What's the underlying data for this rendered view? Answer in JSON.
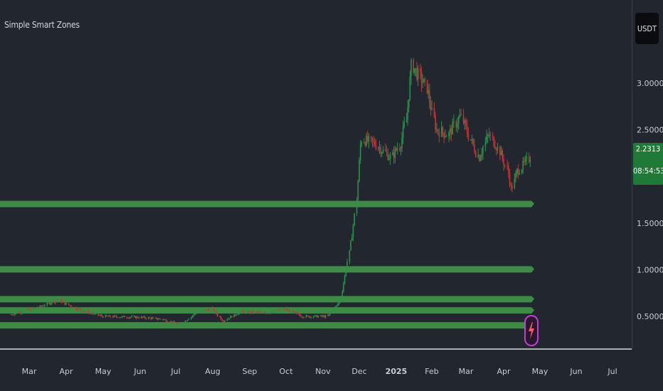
{
  "indicator_title": "Simple Smart Zones",
  "currency": "USDT",
  "last_price": "2.2313",
  "countdown": "08:54:53",
  "colors": {
    "background": "#22262f",
    "up": "#2f8f4a",
    "down": "#b83a3a",
    "zone": "#3f8a46",
    "price_label": "#1f7a38"
  },
  "chart_data": {
    "type": "line",
    "title": "",
    "series_type": "candlestick",
    "x_ticks": [
      "Mar",
      "Apr",
      "May",
      "Jun",
      "Jul",
      "Aug",
      "Sep",
      "Oct",
      "Nov",
      "Dec",
      "2025",
      "Feb",
      "Mar",
      "Apr",
      "May",
      "Jun",
      "Jul"
    ],
    "y_ticks": [
      "3.0000",
      "2.5000",
      "1.5000",
      "1.0000",
      "0.5000"
    ],
    "y_tick_values": [
      3.0,
      2.5,
      1.5,
      1.0,
      0.5
    ],
    "x_range": [
      "2024-02-12",
      "2025-07-20"
    ],
    "price_path": [
      {
        "date": "2024-02-15",
        "price": 0.52
      },
      {
        "date": "2024-03-10",
        "price": 0.6
      },
      {
        "date": "2024-03-25",
        "price": 0.68
      },
      {
        "date": "2024-04-10",
        "price": 0.58
      },
      {
        "date": "2024-05-01",
        "price": 0.5
      },
      {
        "date": "2024-06-01",
        "price": 0.49
      },
      {
        "date": "2024-06-20",
        "price": 0.47
      },
      {
        "date": "2024-07-05",
        "price": 0.41
      },
      {
        "date": "2024-07-20",
        "price": 0.55
      },
      {
        "date": "2024-08-01",
        "price": 0.58
      },
      {
        "date": "2024-08-10",
        "price": 0.45
      },
      {
        "date": "2024-08-25",
        "price": 0.55
      },
      {
        "date": "2024-09-15",
        "price": 0.54
      },
      {
        "date": "2024-10-01",
        "price": 0.58
      },
      {
        "date": "2024-10-15",
        "price": 0.5
      },
      {
        "date": "2024-11-05",
        "price": 0.5
      },
      {
        "date": "2024-11-15",
        "price": 0.65
      },
      {
        "date": "2024-11-22",
        "price": 1.1
      },
      {
        "date": "2024-11-28",
        "price": 1.6
      },
      {
        "date": "2024-12-03",
        "price": 2.4
      },
      {
        "date": "2024-12-15",
        "price": 2.35
      },
      {
        "date": "2024-12-28",
        "price": 2.2
      },
      {
        "date": "2025-01-05",
        "price": 2.35
      },
      {
        "date": "2025-01-10",
        "price": 2.6
      },
      {
        "date": "2025-01-15",
        "price": 3.2
      },
      {
        "date": "2025-01-20",
        "price": 3.1
      },
      {
        "date": "2025-01-28",
        "price": 2.95
      },
      {
        "date": "2025-02-05",
        "price": 2.5
      },
      {
        "date": "2025-02-15",
        "price": 2.45
      },
      {
        "date": "2025-02-25",
        "price": 2.65
      },
      {
        "date": "2025-03-05",
        "price": 2.4
      },
      {
        "date": "2025-03-12",
        "price": 2.2
      },
      {
        "date": "2025-03-20",
        "price": 2.45
      },
      {
        "date": "2025-03-28",
        "price": 2.3
      },
      {
        "date": "2025-04-05",
        "price": 2.05
      },
      {
        "date": "2025-04-08",
        "price": 1.85
      },
      {
        "date": "2025-04-12",
        "price": 2.05
      },
      {
        "date": "2025-04-20",
        "price": 2.15
      },
      {
        "date": "2025-04-24",
        "price": 2.2313
      }
    ],
    "zones": [
      {
        "price": 1.7,
        "end_date": "2025-04-24"
      },
      {
        "price": 1.0,
        "end_date": "2025-04-24"
      },
      {
        "price": 0.68,
        "end_date": "2025-04-24"
      },
      {
        "price": 0.56,
        "end_date": "2025-04-24"
      },
      {
        "price": 0.4,
        "end_date": "2025-04-24"
      }
    ]
  }
}
